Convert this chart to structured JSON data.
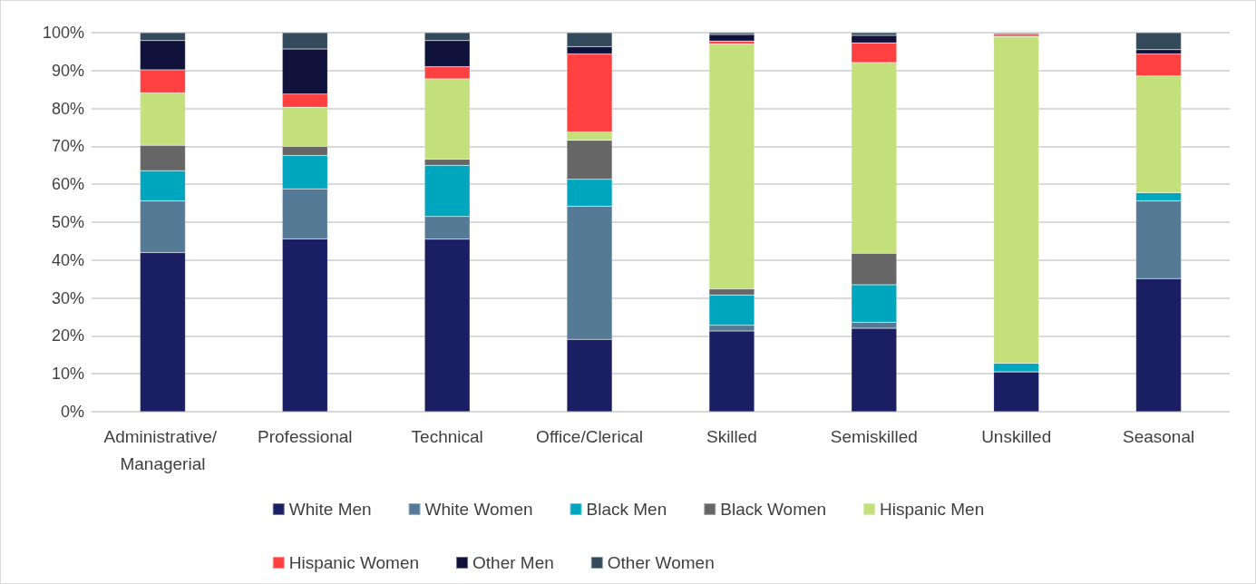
{
  "chart_data": {
    "type": "bar",
    "stacked": true,
    "categories": [
      "Administrative/ Managerial",
      "Professional",
      "Technical",
      "Office/Clerical",
      "Skilled",
      "Semiskilled",
      "Unskilled",
      "Seasonal"
    ],
    "series": [
      {
        "name": "White Men",
        "color": "#1a1e62",
        "values": [
          42.0,
          45.6,
          45.5,
          19.1,
          21.3,
          22.0,
          10.5,
          35.1
        ]
      },
      {
        "name": "White Women",
        "color": "#547a96",
        "values": [
          13.6,
          13.2,
          6.0,
          35.1,
          1.5,
          1.6,
          0,
          20.5
        ]
      },
      {
        "name": "Black Men",
        "color": "#00a6bd",
        "values": [
          8.0,
          8.8,
          13.5,
          7.1,
          8.0,
          9.9,
          2.3,
          2.2
        ]
      },
      {
        "name": "Black Women",
        "color": "#666666",
        "values": [
          6.7,
          2.4,
          1.6,
          10.3,
          1.6,
          8.3,
          0,
          0
        ]
      },
      {
        "name": "Hispanic Men",
        "color": "#c3e07a",
        "values": [
          13.8,
          10.3,
          21.2,
          2.2,
          64.6,
          50.3,
          86.2,
          30.8
        ]
      },
      {
        "name": "Hispanic Women",
        "color": "#ff4040",
        "values": [
          6.1,
          3.5,
          3.2,
          20.6,
          0.8,
          5.2,
          0.5,
          5.8
        ]
      },
      {
        "name": "Other Men",
        "color": "#10123c",
        "values": [
          7.7,
          11.9,
          6.9,
          1.9,
          1.7,
          2.0,
          null,
          1.1
        ]
      },
      {
        "name": "Other Women",
        "color": "#334a5c",
        "values": [
          2.1,
          4.3,
          2.1,
          3.7,
          0.5,
          0.7,
          0.3,
          4.5
        ]
      }
    ],
    "ylim": [
      0,
      100
    ],
    "yticks": [
      {
        "value": 0,
        "label": "0%"
      },
      {
        "value": 10,
        "label": "10%"
      },
      {
        "value": 20,
        "label": "20%"
      },
      {
        "value": 30,
        "label": "30%"
      },
      {
        "value": 40,
        "label": "40%"
      },
      {
        "value": 50,
        "label": "50%"
      },
      {
        "value": 60,
        "label": "60%"
      },
      {
        "value": 70,
        "label": "70%"
      },
      {
        "value": 80,
        "label": "80%"
      },
      {
        "value": 90,
        "label": "90%"
      },
      {
        "value": 100,
        "label": "100%"
      }
    ],
    "grid": "y",
    "legend": "bottom"
  }
}
